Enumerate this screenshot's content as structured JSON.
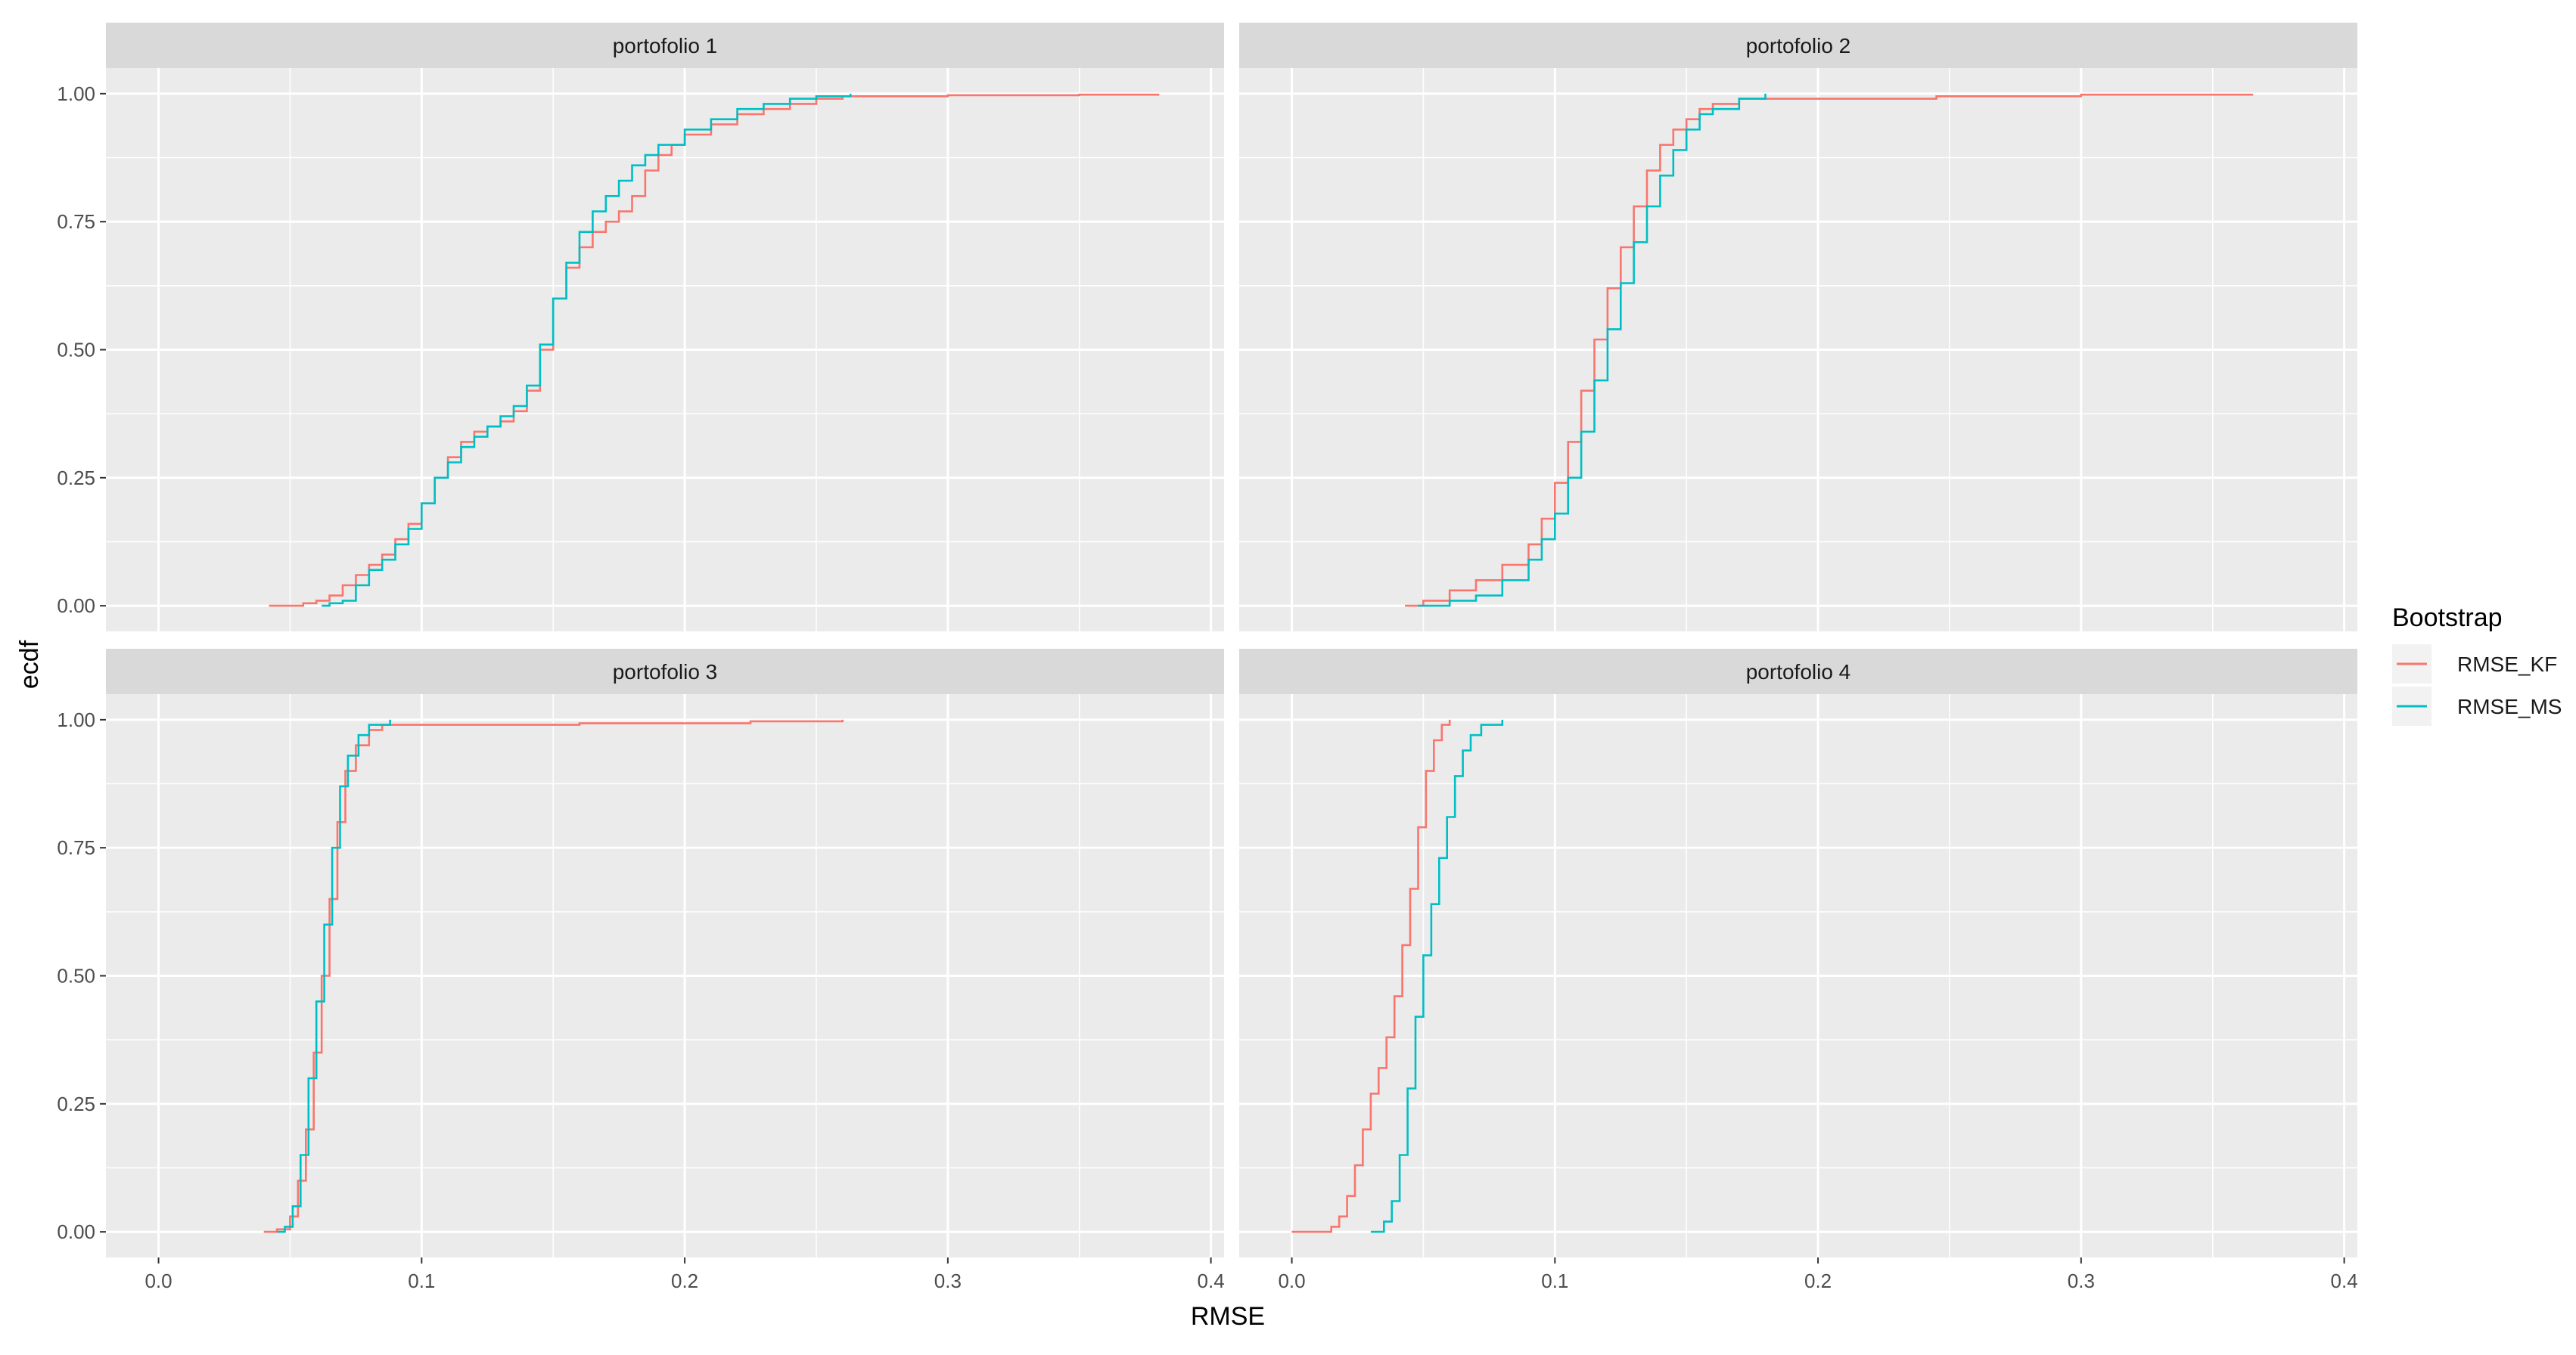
{
  "chart_data": {
    "type": "line",
    "subtype": "ecdf-step",
    "xlabel": "RMSE",
    "ylabel": "ecdf",
    "xlim": [
      -0.02,
      0.405
    ],
    "ylim": [
      -0.05,
      1.05
    ],
    "x_ticks": [
      "0.0",
      "0.1",
      "0.2",
      "0.3",
      "0.4"
    ],
    "y_ticks": [
      "0.00",
      "0.25",
      "0.50",
      "0.75",
      "1.00"
    ],
    "grid": true,
    "legend": {
      "title": "Bootstrap",
      "position": "right",
      "entries": [
        {
          "label": "RMSE_KF",
          "color": "#F8766D"
        },
        {
          "label": "RMSE_MS",
          "color": "#00BFC4"
        }
      ]
    },
    "panels": [
      {
        "title": "portofolio 1",
        "series": [
          {
            "name": "RMSE_KF",
            "color": "#F8766D",
            "points": [
              [
                0.042,
                0.0
              ],
              [
                0.05,
                0.0
              ],
              [
                0.055,
                0.005
              ],
              [
                0.06,
                0.01
              ],
              [
                0.065,
                0.02
              ],
              [
                0.07,
                0.04
              ],
              [
                0.075,
                0.06
              ],
              [
                0.08,
                0.08
              ],
              [
                0.085,
                0.1
              ],
              [
                0.09,
                0.13
              ],
              [
                0.095,
                0.16
              ],
              [
                0.1,
                0.2
              ],
              [
                0.105,
                0.25
              ],
              [
                0.11,
                0.29
              ],
              [
                0.115,
                0.32
              ],
              [
                0.12,
                0.34
              ],
              [
                0.125,
                0.35
              ],
              [
                0.13,
                0.36
              ],
              [
                0.135,
                0.38
              ],
              [
                0.14,
                0.42
              ],
              [
                0.145,
                0.5
              ],
              [
                0.15,
                0.6
              ],
              [
                0.155,
                0.66
              ],
              [
                0.16,
                0.7
              ],
              [
                0.165,
                0.73
              ],
              [
                0.17,
                0.75
              ],
              [
                0.175,
                0.77
              ],
              [
                0.18,
                0.8
              ],
              [
                0.185,
                0.85
              ],
              [
                0.19,
                0.88
              ],
              [
                0.195,
                0.9
              ],
              [
                0.2,
                0.92
              ],
              [
                0.21,
                0.94
              ],
              [
                0.22,
                0.96
              ],
              [
                0.23,
                0.97
              ],
              [
                0.24,
                0.98
              ],
              [
                0.25,
                0.99
              ],
              [
                0.26,
                0.995
              ],
              [
                0.3,
                0.997
              ],
              [
                0.35,
                0.998
              ],
              [
                0.38,
                1.0
              ]
            ]
          },
          {
            "name": "RMSE_MS",
            "color": "#00BFC4",
            "points": [
              [
                0.062,
                0.0
              ],
              [
                0.065,
                0.005
              ],
              [
                0.07,
                0.01
              ],
              [
                0.075,
                0.04
              ],
              [
                0.08,
                0.07
              ],
              [
                0.085,
                0.09
              ],
              [
                0.09,
                0.12
              ],
              [
                0.095,
                0.15
              ],
              [
                0.1,
                0.2
              ],
              [
                0.105,
                0.25
              ],
              [
                0.11,
                0.28
              ],
              [
                0.115,
                0.31
              ],
              [
                0.12,
                0.33
              ],
              [
                0.125,
                0.35
              ],
              [
                0.13,
                0.37
              ],
              [
                0.135,
                0.39
              ],
              [
                0.14,
                0.43
              ],
              [
                0.145,
                0.51
              ],
              [
                0.15,
                0.6
              ],
              [
                0.155,
                0.67
              ],
              [
                0.16,
                0.73
              ],
              [
                0.165,
                0.77
              ],
              [
                0.17,
                0.8
              ],
              [
                0.175,
                0.83
              ],
              [
                0.18,
                0.86
              ],
              [
                0.185,
                0.88
              ],
              [
                0.19,
                0.9
              ],
              [
                0.2,
                0.93
              ],
              [
                0.21,
                0.95
              ],
              [
                0.22,
                0.97
              ],
              [
                0.23,
                0.98
              ],
              [
                0.24,
                0.99
              ],
              [
                0.25,
                0.995
              ],
              [
                0.263,
                1.0
              ]
            ]
          }
        ]
      },
      {
        "title": "portofolio 2",
        "series": [
          {
            "name": "RMSE_KF",
            "color": "#F8766D",
            "points": [
              [
                0.043,
                0.0
              ],
              [
                0.05,
                0.01
              ],
              [
                0.06,
                0.03
              ],
              [
                0.07,
                0.05
              ],
              [
                0.08,
                0.08
              ],
              [
                0.09,
                0.12
              ],
              [
                0.095,
                0.17
              ],
              [
                0.1,
                0.24
              ],
              [
                0.105,
                0.32
              ],
              [
                0.11,
                0.42
              ],
              [
                0.115,
                0.52
              ],
              [
                0.12,
                0.62
              ],
              [
                0.125,
                0.7
              ],
              [
                0.13,
                0.78
              ],
              [
                0.135,
                0.85
              ],
              [
                0.14,
                0.9
              ],
              [
                0.145,
                0.93
              ],
              [
                0.15,
                0.95
              ],
              [
                0.155,
                0.97
              ],
              [
                0.16,
                0.98
              ],
              [
                0.17,
                0.99
              ],
              [
                0.2,
                0.99
              ],
              [
                0.245,
                0.995
              ],
              [
                0.3,
                0.998
              ],
              [
                0.365,
                1.0
              ]
            ]
          },
          {
            "name": "RMSE_MS",
            "color": "#00BFC4",
            "points": [
              [
                0.048,
                0.0
              ],
              [
                0.06,
                0.01
              ],
              [
                0.07,
                0.02
              ],
              [
                0.08,
                0.05
              ],
              [
                0.09,
                0.09
              ],
              [
                0.095,
                0.13
              ],
              [
                0.1,
                0.18
              ],
              [
                0.105,
                0.25
              ],
              [
                0.11,
                0.34
              ],
              [
                0.115,
                0.44
              ],
              [
                0.12,
                0.54
              ],
              [
                0.125,
                0.63
              ],
              [
                0.13,
                0.71
              ],
              [
                0.135,
                0.78
              ],
              [
                0.14,
                0.84
              ],
              [
                0.145,
                0.89
              ],
              [
                0.15,
                0.93
              ],
              [
                0.155,
                0.96
              ],
              [
                0.16,
                0.97
              ],
              [
                0.17,
                0.99
              ],
              [
                0.18,
                1.0
              ]
            ]
          }
        ]
      },
      {
        "title": "portofolio 3",
        "series": [
          {
            "name": "RMSE_KF",
            "color": "#F8766D",
            "points": [
              [
                0.04,
                0.0
              ],
              [
                0.045,
                0.005
              ],
              [
                0.05,
                0.03
              ],
              [
                0.053,
                0.1
              ],
              [
                0.056,
                0.2
              ],
              [
                0.059,
                0.35
              ],
              [
                0.062,
                0.5
              ],
              [
                0.065,
                0.65
              ],
              [
                0.068,
                0.8
              ],
              [
                0.071,
                0.9
              ],
              [
                0.075,
                0.95
              ],
              [
                0.08,
                0.98
              ],
              [
                0.085,
                0.99
              ],
              [
                0.1,
                0.99
              ],
              [
                0.16,
                0.993
              ],
              [
                0.225,
                0.997
              ],
              [
                0.26,
                1.0
              ]
            ]
          },
          {
            "name": "RMSE_MS",
            "color": "#00BFC4",
            "points": [
              [
                0.045,
                0.0
              ],
              [
                0.048,
                0.01
              ],
              [
                0.051,
                0.05
              ],
              [
                0.054,
                0.15
              ],
              [
                0.057,
                0.3
              ],
              [
                0.06,
                0.45
              ],
              [
                0.063,
                0.6
              ],
              [
                0.066,
                0.75
              ],
              [
                0.069,
                0.87
              ],
              [
                0.072,
                0.93
              ],
              [
                0.076,
                0.97
              ],
              [
                0.08,
                0.99
              ],
              [
                0.088,
                1.0
              ]
            ]
          }
        ]
      },
      {
        "title": "portofolio 4",
        "series": [
          {
            "name": "RMSE_KF",
            "color": "#F8766D",
            "points": [
              [
                0.0,
                0.0
              ],
              [
                0.01,
                0.0
              ],
              [
                0.015,
                0.01
              ],
              [
                0.018,
                0.03
              ],
              [
                0.021,
                0.07
              ],
              [
                0.024,
                0.13
              ],
              [
                0.027,
                0.2
              ],
              [
                0.03,
                0.27
              ],
              [
                0.033,
                0.32
              ],
              [
                0.036,
                0.38
              ],
              [
                0.039,
                0.46
              ],
              [
                0.042,
                0.56
              ],
              [
                0.045,
                0.67
              ],
              [
                0.048,
                0.79
              ],
              [
                0.051,
                0.9
              ],
              [
                0.054,
                0.96
              ],
              [
                0.057,
                0.99
              ],
              [
                0.06,
                1.0
              ]
            ]
          },
          {
            "name": "RMSE_MS",
            "color": "#00BFC4",
            "points": [
              [
                0.03,
                0.0
              ],
              [
                0.035,
                0.02
              ],
              [
                0.038,
                0.06
              ],
              [
                0.041,
                0.15
              ],
              [
                0.044,
                0.28
              ],
              [
                0.047,
                0.42
              ],
              [
                0.05,
                0.54
              ],
              [
                0.053,
                0.64
              ],
              [
                0.056,
                0.73
              ],
              [
                0.059,
                0.81
              ],
              [
                0.062,
                0.89
              ],
              [
                0.065,
                0.94
              ],
              [
                0.068,
                0.97
              ],
              [
                0.072,
                0.99
              ],
              [
                0.08,
                1.0
              ]
            ]
          }
        ]
      }
    ]
  }
}
